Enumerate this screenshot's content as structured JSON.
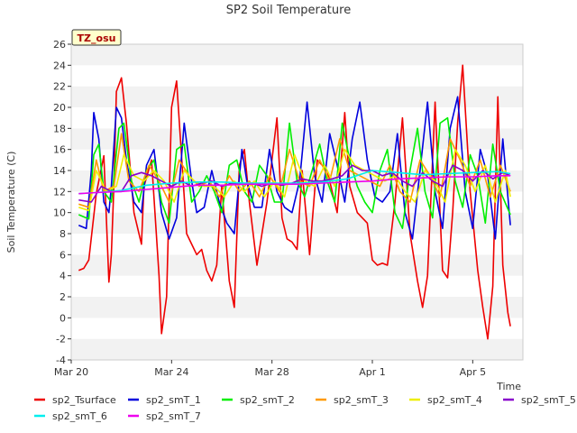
{
  "chart_data": {
    "type": "line",
    "title": "SP2 Soil Temperature",
    "xlabel": "Time",
    "ylabel": "Soil Temperature (C)",
    "ylim": [
      -4,
      26
    ],
    "yticks": [
      -4,
      -2,
      0,
      2,
      4,
      6,
      8,
      10,
      12,
      14,
      16,
      18,
      20,
      22,
      24,
      26
    ],
    "x_range_days": [
      0,
      18
    ],
    "xticks": [
      {
        "day": 0,
        "label": "Mar 20"
      },
      {
        "day": 4,
        "label": "Mar 24"
      },
      {
        "day": 8,
        "label": "Mar 28"
      },
      {
        "day": 12,
        "label": "Apr 1"
      },
      {
        "day": 16,
        "label": "Apr 5"
      }
    ],
    "grid": "horizontal alternating bands",
    "legend_position": "bottom",
    "annotation": "TZ_osu",
    "series": [
      {
        "name": "sp2_Tsurface",
        "color": "#ee0000",
        "x": [
          0.3,
          0.5,
          0.7,
          1.0,
          1.3,
          1.5,
          1.6,
          1.7,
          1.8,
          2.0,
          2.2,
          2.5,
          2.8,
          2.9,
          3.2,
          3.5,
          3.6,
          3.8,
          4.0,
          4.2,
          4.6,
          5.0,
          5.2,
          5.4,
          5.6,
          5.8,
          6.0,
          6.3,
          6.5,
          6.7,
          6.9,
          7.1,
          7.4,
          7.8,
          8.2,
          8.4,
          8.6,
          8.8,
          9.0,
          9.2,
          9.5,
          9.8,
          10.2,
          10.6,
          10.9,
          11.1,
          11.4,
          11.8,
          12.0,
          12.2,
          12.4,
          12.6,
          12.9,
          13.2,
          13.5,
          13.8,
          14.0,
          14.2,
          14.5,
          14.8,
          15.0,
          15.2,
          15.4,
          15.6,
          15.9,
          16.2,
          16.4,
          16.6,
          16.8,
          17.0,
          17.2,
          17.4,
          17.5
        ],
        "y": [
          4.5,
          4.7,
          5.5,
          11.8,
          15.4,
          3.4,
          6.0,
          12.5,
          21.5,
          22.8,
          18.5,
          10.0,
          7.0,
          12.5,
          15.0,
          4.0,
          -1.5,
          2.0,
          20.0,
          22.5,
          8.0,
          6.0,
          6.5,
          4.5,
          3.5,
          5.0,
          12.5,
          3.5,
          1.0,
          14.5,
          16.0,
          11.0,
          5.0,
          11.0,
          19.0,
          9.5,
          7.5,
          7.2,
          6.5,
          14.0,
          6.0,
          15.0,
          14.0,
          10.0,
          19.5,
          12.5,
          10.0,
          9.0,
          5.5,
          5.0,
          5.2,
          5.0,
          11.0,
          19.0,
          8.0,
          3.5,
          1.0,
          4.0,
          20.5,
          4.5,
          3.8,
          10.0,
          18.5,
          24.0,
          12.0,
          4.5,
          1.0,
          -2.0,
          3.0,
          21.0,
          5.0,
          0.5,
          -0.8
        ]
      },
      {
        "name": "sp2_smT_1",
        "color": "#0000dd",
        "x": [
          0.3,
          0.6,
          0.8,
          0.9,
          1.1,
          1.3,
          1.5,
          1.6,
          1.8,
          2.0,
          2.2,
          2.5,
          2.8,
          3.0,
          3.3,
          3.6,
          3.9,
          4.2,
          4.5,
          4.8,
          5.0,
          5.3,
          5.6,
          5.9,
          6.2,
          6.5,
          6.8,
          7.0,
          7.3,
          7.6,
          7.9,
          8.2,
          8.5,
          8.8,
          9.1,
          9.4,
          9.7,
          10.0,
          10.3,
          10.6,
          10.9,
          11.2,
          11.5,
          11.8,
          12.1,
          12.4,
          12.7,
          13.0,
          13.3,
          13.6,
          13.9,
          14.2,
          14.5,
          14.8,
          15.1,
          15.4,
          15.7,
          16.0,
          16.3,
          16.6,
          16.9,
          17.2,
          17.5
        ],
        "y": [
          8.8,
          8.5,
          14.0,
          19.5,
          17.0,
          11.0,
          10.0,
          12.5,
          20.0,
          19.0,
          15.0,
          11.0,
          10.0,
          14.5,
          16.0,
          10.0,
          7.5,
          9.5,
          18.5,
          13.0,
          10.0,
          10.5,
          14.0,
          11.0,
          9.0,
          8.0,
          16.0,
          13.0,
          10.5,
          10.5,
          16.0,
          12.0,
          10.5,
          10.0,
          13.0,
          20.5,
          13.5,
          11.0,
          17.5,
          14.5,
          11.0,
          17.0,
          20.5,
          15.0,
          11.5,
          11.0,
          12.0,
          17.5,
          10.0,
          7.5,
          14.0,
          20.5,
          12.0,
          8.5,
          18.0,
          21.0,
          12.0,
          8.5,
          16.0,
          13.5,
          7.5,
          17.0,
          8.8
        ]
      },
      {
        "name": "sp2_smT_2",
        "color": "#00ee00",
        "x": [
          0.3,
          0.7,
          0.9,
          1.1,
          1.3,
          1.6,
          1.9,
          2.1,
          2.4,
          2.7,
          3.0,
          3.3,
          3.6,
          3.9,
          4.2,
          4.5,
          4.8,
          5.1,
          5.4,
          5.7,
          6.0,
          6.3,
          6.6,
          6.9,
          7.2,
          7.5,
          7.8,
          8.1,
          8.4,
          8.7,
          9.0,
          9.3,
          9.6,
          9.9,
          10.2,
          10.5,
          10.8,
          11.1,
          11.4,
          11.7,
          12.0,
          12.3,
          12.6,
          12.9,
          13.2,
          13.5,
          13.8,
          14.1,
          14.4,
          14.7,
          15.0,
          15.3,
          15.6,
          15.9,
          16.2,
          16.5,
          16.8,
          17.1,
          17.5
        ],
        "y": [
          9.8,
          9.4,
          15.5,
          16.5,
          12.0,
          11.0,
          18.0,
          18.5,
          13.0,
          11.0,
          14.0,
          15.0,
          11.0,
          9.0,
          16.0,
          16.5,
          11.0,
          12.0,
          13.5,
          12.0,
          10.0,
          14.5,
          15.0,
          12.0,
          11.0,
          14.5,
          13.5,
          11.0,
          11.0,
          18.5,
          13.0,
          11.5,
          14.0,
          16.5,
          13.0,
          11.0,
          18.5,
          15.0,
          12.5,
          11.0,
          10.0,
          14.0,
          16.0,
          10.0,
          8.5,
          14.0,
          18.0,
          12.0,
          9.5,
          18.5,
          19.0,
          13.0,
          10.5,
          15.5,
          13.5,
          9.0,
          16.5,
          12.0,
          9.8
        ]
      },
      {
        "name": "sp2_smT_3",
        "color": "#ff9900",
        "x": [
          0.3,
          0.7,
          1.0,
          1.3,
          1.7,
          2.0,
          2.3,
          2.7,
          3.1,
          3.5,
          3.9,
          4.3,
          4.7,
          5.1,
          5.5,
          5.9,
          6.3,
          6.7,
          7.1,
          7.5,
          7.9,
          8.3,
          8.7,
          9.1,
          9.5,
          9.9,
          10.3,
          10.7,
          11.1,
          11.5,
          11.9,
          12.3,
          12.7,
          13.1,
          13.5,
          13.9,
          14.3,
          14.7,
          15.1,
          15.5,
          15.9,
          16.3,
          16.7,
          17.1,
          17.5
        ],
        "y": [
          10.8,
          10.5,
          15.0,
          12.0,
          12.5,
          17.5,
          13.0,
          12.0,
          14.5,
          13.0,
          11.0,
          15.0,
          13.5,
          12.5,
          13.0,
          11.5,
          13.5,
          12.0,
          13.0,
          11.5,
          13.5,
          12.0,
          16.0,
          13.0,
          12.5,
          15.0,
          13.0,
          17.0,
          14.0,
          13.5,
          13.0,
          12.5,
          14.5,
          12.0,
          11.0,
          15.0,
          13.5,
          11.5,
          17.0,
          15.0,
          12.5,
          15.0,
          11.5,
          14.5,
          12.0
        ]
      },
      {
        "name": "sp2_smT_4",
        "color": "#eeee00",
        "x": [
          0.3,
          0.7,
          1.0,
          1.4,
          1.8,
          2.1,
          2.5,
          2.9,
          3.3,
          3.7,
          4.1,
          4.5,
          4.9,
          5.3,
          5.7,
          6.1,
          6.5,
          6.9,
          7.3,
          7.7,
          8.1,
          8.5,
          8.9,
          9.3,
          9.7,
          10.1,
          10.5,
          10.9,
          11.3,
          11.7,
          12.1,
          12.5,
          12.9,
          13.3,
          13.7,
          14.1,
          14.5,
          14.9,
          15.3,
          15.7,
          16.1,
          16.5,
          16.9,
          17.3,
          17.5
        ],
        "y": [
          10.5,
          10.2,
          14.0,
          12.0,
          12.5,
          15.5,
          13.5,
          13.0,
          14.0,
          13.0,
          11.0,
          14.0,
          13.0,
          12.5,
          12.5,
          11.5,
          13.0,
          12.0,
          13.0,
          11.5,
          13.0,
          11.5,
          15.5,
          13.0,
          12.5,
          14.5,
          12.5,
          16.0,
          14.5,
          14.0,
          13.5,
          13.0,
          13.5,
          12.0,
          11.0,
          14.0,
          13.0,
          11.0,
          16.0,
          14.5,
          12.0,
          14.5,
          11.0,
          14.0,
          11.5
        ]
      },
      {
        "name": "sp2_smT_5",
        "color": "#8800cc",
        "x": [
          0.3,
          0.8,
          1.2,
          1.6,
          2.0,
          2.4,
          2.8,
          3.2,
          3.6,
          4.0,
          4.4,
          4.8,
          5.2,
          5.6,
          6.0,
          6.4,
          6.8,
          7.2,
          7.6,
          8.0,
          8.4,
          8.8,
          9.2,
          9.6,
          10.0,
          10.4,
          10.8,
          11.2,
          11.6,
          12.0,
          12.4,
          12.8,
          13.2,
          13.6,
          14.0,
          14.4,
          14.8,
          15.2,
          15.6,
          16.0,
          16.4,
          16.8,
          17.2,
          17.5
        ],
        "y": [
          11.2,
          11.0,
          12.5,
          12.0,
          12.0,
          13.5,
          13.8,
          13.5,
          13.0,
          12.5,
          13.0,
          12.5,
          12.8,
          13.0,
          12.5,
          12.8,
          12.7,
          12.8,
          12.5,
          12.8,
          12.6,
          12.8,
          13.2,
          13.0,
          13.0,
          13.2,
          13.5,
          14.5,
          14.0,
          14.0,
          13.5,
          13.8,
          13.0,
          12.5,
          13.8,
          13.0,
          12.5,
          14.5,
          14.0,
          13.0,
          14.0,
          13.2,
          13.8,
          13.5
        ]
      },
      {
        "name": "sp2_smT_6",
        "color": "#00eeee",
        "x": [
          0.3,
          1.0,
          2.0,
          3.0,
          4.0,
          5.0,
          6.0,
          7.0,
          8.0,
          9.0,
          10.0,
          11.0,
          12.0,
          13.0,
          14.0,
          15.0,
          16.0,
          17.0,
          17.5
        ],
        "y": [
          11.8,
          11.9,
          12.1,
          12.6,
          12.8,
          12.9,
          12.9,
          12.8,
          12.8,
          12.8,
          12.9,
          13.2,
          14.0,
          13.8,
          13.6,
          13.7,
          13.8,
          13.9,
          13.7
        ]
      },
      {
        "name": "sp2_smT_7",
        "color": "#ee00ee",
        "x": [
          0.3,
          1.0,
          2.0,
          3.0,
          4.0,
          5.0,
          6.0,
          7.0,
          8.0,
          9.0,
          10.0,
          11.0,
          12.0,
          13.0,
          14.0,
          15.0,
          16.0,
          17.0,
          17.5
        ],
        "y": [
          11.8,
          11.9,
          12.0,
          12.2,
          12.4,
          12.6,
          12.6,
          12.7,
          12.7,
          12.7,
          12.8,
          12.9,
          13.0,
          13.2,
          13.3,
          13.4,
          13.4,
          13.5,
          13.5
        ]
      }
    ]
  }
}
